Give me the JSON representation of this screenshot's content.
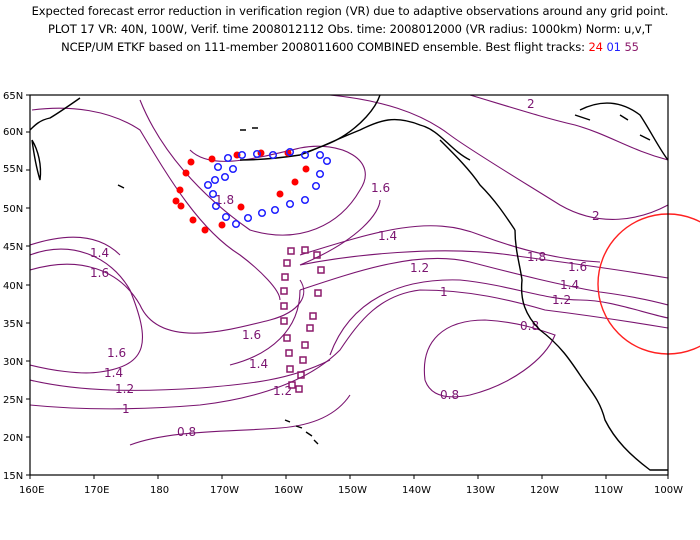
{
  "title": {
    "line1": "Expected forecast error reduction in verification region (VR) due to adaptive observations around any grid point.",
    "line2": "PLOT 17 VR: 40N, 100W, Verif. time 2008012112 Obs. time: 2008012000 (VR radius: 1000km) Norm: u,v,T",
    "line3_prefix": "NCEP/UM ETKF based on 111-member 2008011600 COMBINED ensemble.  Best flight tracks:",
    "track_red": "24",
    "track_blue": "01",
    "track_purple": "55"
  },
  "colors": {
    "contour": "#7a1470",
    "track_red": "#ff0000",
    "track_blue": "#2020ff",
    "track_purple": "#8b1a6b",
    "verification_circle": "#ff2020",
    "coastline": "#000000"
  },
  "axes": {
    "lat_labels": [
      "65N",
      "60N",
      "55N",
      "50N",
      "45N",
      "40N",
      "35N",
      "30N",
      "25N",
      "20N",
      "15N"
    ],
    "lon_labels": [
      "160E",
      "170E",
      "180",
      "170W",
      "160W",
      "150W",
      "140W",
      "130W",
      "120W",
      "110W",
      "100W"
    ]
  },
  "contour_labels": [
    "2",
    "2",
    "1.8",
    "1.8",
    "1.6",
    "1.6",
    "1.6",
    "1.6",
    "1.6",
    "1.4",
    "1.4",
    "1.4",
    "1.4",
    "1.4",
    "1.2",
    "1.2",
    "1.2",
    "1.2",
    "1",
    "1",
    "0.8",
    "0.8",
    "0.8"
  ]
}
